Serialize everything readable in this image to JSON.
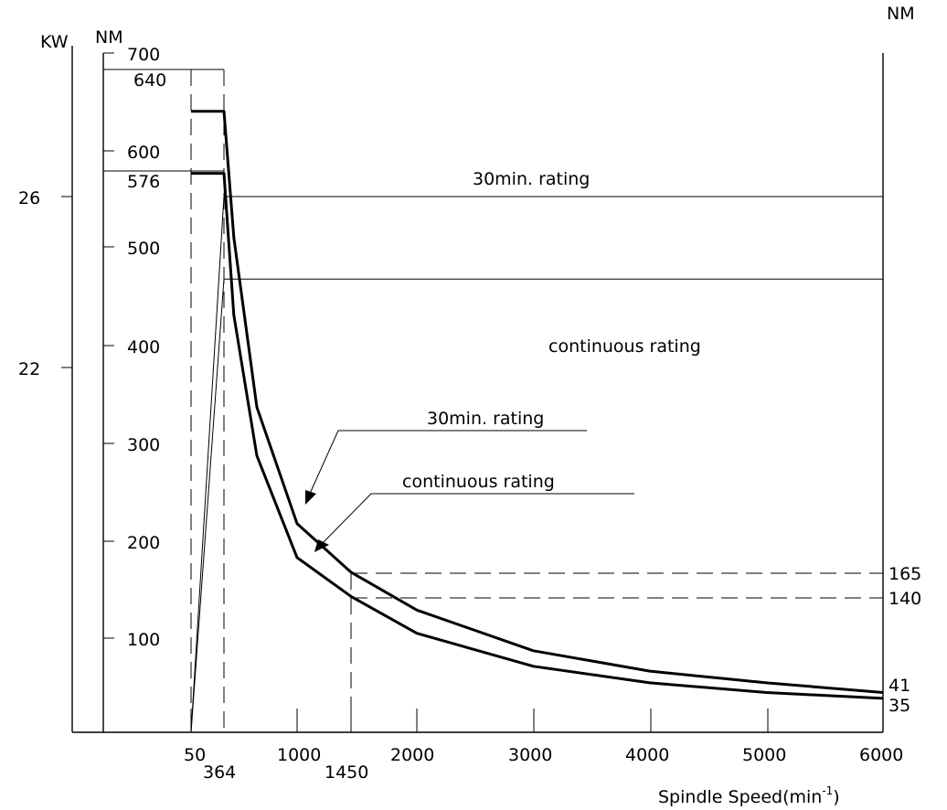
{
  "chart_data": {
    "type": "line",
    "xlabel": "Spindle Speed(min",
    "xlabel_sup": "-1",
    "xlabel_tail": ")",
    "left_unit_kw": "KW",
    "left_unit_nm": "NM",
    "right_unit_nm": "NM",
    "x_ticks": [
      "2000",
      "3000",
      "4000",
      "5000",
      "6000"
    ],
    "x_marks": {
      "m50": "50",
      "m364": "364",
      "m1000": "1000",
      "m1450": "1450"
    },
    "nm_ticks": [
      "700",
      "640",
      "600",
      "576",
      "500",
      "400",
      "300",
      "200",
      "100"
    ],
    "kw_ticks": [
      "26",
      "22"
    ],
    "right_ticks": [
      "165",
      "140",
      "41",
      "35"
    ],
    "power": [
      {
        "name": "30min. rating",
        "kw": 26,
        "x": [
          50,
          364,
          6000
        ],
        "y": [
          0,
          26,
          26
        ]
      },
      {
        "name": "continuous rating",
        "kw": 22,
        "x": [
          50,
          364,
          6000
        ],
        "y": [
          0,
          22,
          22
        ]
      }
    ],
    "torque": [
      {
        "name": "30min. rating",
        "x": [
          50,
          364,
          450,
          650,
          1000,
          1450,
          1450,
          2000,
          3000,
          4000,
          5000,
          6000
        ],
        "y": [
          640,
          640,
          510,
          335,
          215,
          165,
          165,
          126,
          84,
          63,
          51,
          41
        ]
      },
      {
        "name": "continuous rating",
        "x": [
          50,
          364,
          450,
          650,
          1000,
          1450,
          1450,
          2000,
          3000,
          4000,
          5000,
          6000
        ],
        "y": [
          576,
          576,
          430,
          285,
          180,
          140,
          140,
          102,
          68,
          51,
          41,
          35
        ]
      }
    ],
    "annotations": {
      "power_30": "30min. rating",
      "power_cont": "continuous rating",
      "torque_30": "30min. rating",
      "torque_cont": "continuous rating"
    },
    "grid": false,
    "legend": "none"
  }
}
